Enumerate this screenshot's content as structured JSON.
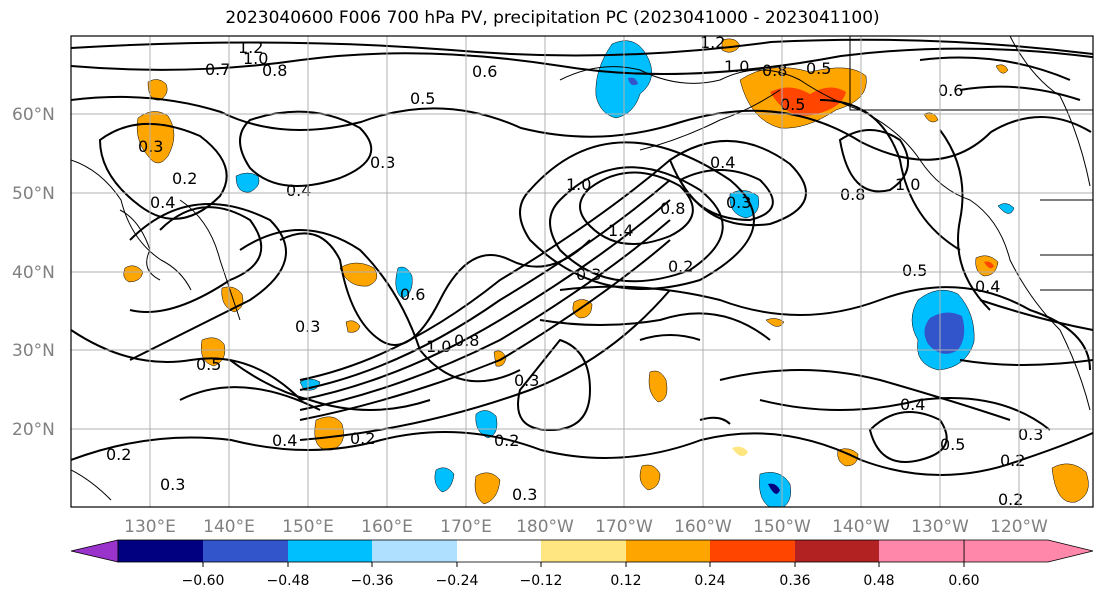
{
  "title": "2023040600 F006 700 hPa PV, precipitation PC (2023041000 - 2023041100)",
  "latitude_labels": [
    "60°N",
    "50°N",
    "40°N",
    "30°N",
    "20°N"
  ],
  "longitude_labels": [
    "130°E",
    "140°E",
    "150°E",
    "160°E",
    "170°E",
    "180°W",
    "170°W",
    "160°W",
    "150°W",
    "140°W",
    "130°W",
    "120°W"
  ],
  "colorbar": {
    "ticks": [
      "−0.60",
      "−0.48",
      "−0.36",
      "−0.24",
      "−0.12",
      "0.12",
      "0.24",
      "0.36",
      "0.48",
      "0.60"
    ],
    "colors": [
      "#9933cc",
      "#000080",
      "#3355cc",
      "#00bfff",
      "#b0e0ff",
      "#ffffff",
      "#ffe680",
      "#ffa500",
      "#ff4500",
      "#b22222",
      "#ff88aa"
    ]
  },
  "contour_labels": [
    "1.2",
    "0.7",
    "1.0",
    "0.8",
    "0.3",
    "0.5",
    "0.6",
    "0.4",
    "0.2",
    "1.2",
    "1.0",
    "0.8",
    "0.5",
    "0.3",
    "0.4",
    "0.6",
    "0.8",
    "1.0",
    "0.4",
    "0.3",
    "1.0",
    "1.4",
    "0.8",
    "0.2",
    "0.3",
    "0.5",
    "0.4",
    "0.2",
    "0.3",
    "0.2",
    "0.5",
    "0.3",
    "0.4",
    "0.6",
    "1.0",
    "0.8",
    "0.3",
    "0.3",
    "0.2",
    "0.4",
    "0.5",
    "0.2",
    "0.3",
    "0.2",
    "0.5"
  ],
  "colors": {
    "orange": "#ffa500",
    "red": "#ff4500",
    "yellow": "#ffe680",
    "cyan": "#00bfff",
    "lightblue": "#b0e0ff",
    "blue": "#3355cc",
    "navy": "#000080"
  }
}
